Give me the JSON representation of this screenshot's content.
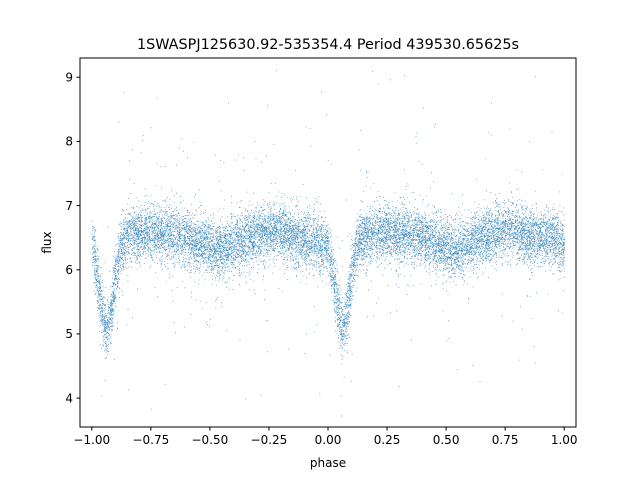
{
  "chart_data": {
    "type": "scatter",
    "title": "1SWASPJ125630.92-535354.4 Period 439530.65625s",
    "xlabel": "phase",
    "ylabel": "flux",
    "xlim": [
      -1.05,
      1.05
    ],
    "ylim": [
      3.55,
      9.3
    ],
    "xticks": [
      -1.0,
      -0.75,
      -0.5,
      -0.25,
      0.0,
      0.25,
      0.5,
      0.75,
      1.0
    ],
    "xtick_labels": [
      "−1.00",
      "−0.75",
      "−0.50",
      "−0.25",
      "0.00",
      "0.25",
      "0.50",
      "0.75",
      "1.00"
    ],
    "yticks": [
      4,
      5,
      6,
      7,
      8,
      9
    ],
    "ytick_labels": [
      "4",
      "5",
      "6",
      "7",
      "8",
      "9"
    ],
    "grid": false,
    "marker_color": "#1f77b4",
    "description_of_series": "Phase-folded light curve (two cycles, phase −1 to 1) of an eclipsing system; baseline flux ≈6.5 with eclipse minima ≈5.0 near phases −0.94 and 0.06, plus scattered outliers from ≈3.8 to ≈9.0",
    "envelope": {
      "phase": [
        -1.0,
        -0.98,
        -0.96,
        -0.94,
        -0.92,
        -0.9,
        -0.88,
        -0.85,
        -0.75,
        -0.6,
        -0.5,
        -0.45,
        -0.35,
        -0.25,
        -0.2,
        -0.15,
        -0.05,
        0.0,
        0.02,
        0.04,
        0.06,
        0.08,
        0.1,
        0.12,
        0.15,
        0.25,
        0.4,
        0.5,
        0.55,
        0.65,
        0.75,
        0.8,
        0.85,
        0.95,
        1.0
      ],
      "flux": [
        6.4,
        5.95,
        5.4,
        5.05,
        5.3,
        5.9,
        6.35,
        6.55,
        6.6,
        6.5,
        6.35,
        6.3,
        6.5,
        6.6,
        6.6,
        6.5,
        6.45,
        6.35,
        5.95,
        5.4,
        5.05,
        5.35,
        5.95,
        6.35,
        6.55,
        6.6,
        6.5,
        6.35,
        6.3,
        6.5,
        6.6,
        6.6,
        6.5,
        6.5,
        6.4
      ]
    }
  }
}
